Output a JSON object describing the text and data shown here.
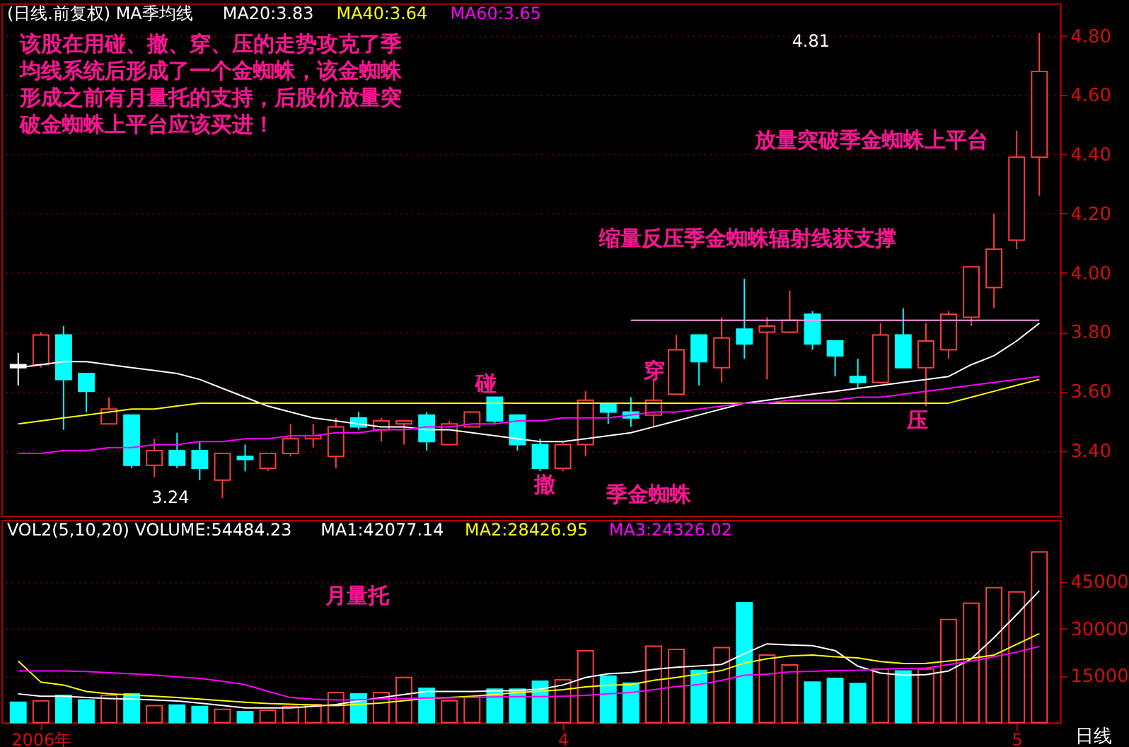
{
  "chart_data": [
    {
      "type": "candlestick",
      "title": "(日线.前复权) MA季均线",
      "categories": [
        null,
        null,
        null,
        null,
        null,
        null,
        null,
        null,
        null,
        null,
        null,
        null,
        null,
        null,
        null,
        null,
        null,
        null,
        null,
        null,
        null,
        null,
        null,
        null,
        null,
        null,
        null,
        null,
        null,
        null,
        null,
        null,
        null,
        null,
        null,
        null,
        null,
        null,
        null,
        null,
        null,
        null,
        null,
        null,
        null,
        null
      ],
      "ohlc": [
        [
          3.69,
          3.73,
          3.62,
          3.68
        ],
        [
          3.69,
          3.8,
          3.68,
          3.79
        ],
        [
          3.79,
          3.82,
          3.47,
          3.64
        ],
        [
          3.66,
          3.66,
          3.53,
          3.6
        ],
        [
          3.49,
          3.58,
          3.49,
          3.54
        ],
        [
          3.52,
          3.52,
          3.34,
          3.35
        ],
        [
          3.35,
          3.44,
          3.31,
          3.4
        ],
        [
          3.4,
          3.46,
          3.34,
          3.35
        ],
        [
          3.4,
          3.43,
          3.3,
          3.34
        ],
        [
          3.3,
          3.39,
          3.24,
          3.39
        ],
        [
          3.38,
          3.42,
          3.33,
          3.37
        ],
        [
          3.34,
          3.39,
          3.33,
          3.39
        ],
        [
          3.39,
          3.49,
          3.38,
          3.44
        ],
        [
          3.44,
          3.49,
          3.41,
          3.45
        ],
        [
          3.38,
          3.51,
          3.34,
          3.48
        ],
        [
          3.51,
          3.53,
          3.47,
          3.48
        ],
        [
          3.47,
          3.51,
          3.43,
          3.5
        ],
        [
          3.49,
          3.5,
          3.42,
          3.5
        ],
        [
          3.52,
          3.53,
          3.4,
          3.43
        ],
        [
          3.42,
          3.5,
          3.42,
          3.49
        ],
        [
          3.48,
          3.53,
          3.48,
          3.53
        ],
        [
          3.58,
          3.58,
          3.49,
          3.5
        ],
        [
          3.52,
          3.52,
          3.4,
          3.42
        ],
        [
          3.42,
          3.44,
          3.33,
          3.34
        ],
        [
          3.34,
          3.43,
          3.33,
          3.42
        ],
        [
          3.42,
          3.6,
          3.38,
          3.57
        ],
        [
          3.56,
          3.56,
          3.49,
          3.53
        ],
        [
          3.53,
          3.58,
          3.48,
          3.51
        ],
        [
          3.52,
          3.64,
          3.48,
          3.57
        ],
        [
          3.59,
          3.79,
          3.59,
          3.74
        ],
        [
          3.79,
          3.79,
          3.62,
          3.7
        ],
        [
          3.68,
          3.85,
          3.63,
          3.78
        ],
        [
          3.81,
          3.98,
          3.71,
          3.76
        ],
        [
          3.8,
          3.85,
          3.64,
          3.82
        ],
        [
          3.8,
          3.94,
          3.8,
          3.84
        ],
        [
          3.86,
          3.87,
          3.74,
          3.76
        ],
        [
          3.77,
          3.77,
          3.65,
          3.72
        ],
        [
          3.65,
          3.71,
          3.61,
          3.63
        ],
        [
          3.63,
          3.83,
          3.63,
          3.79
        ],
        [
          3.79,
          3.88,
          3.68,
          3.68
        ],
        [
          3.68,
          3.83,
          3.55,
          3.77
        ],
        [
          3.74,
          3.87,
          3.71,
          3.86
        ],
        [
          3.85,
          4.02,
          3.82,
          4.02
        ],
        [
          3.95,
          4.2,
          3.88,
          4.08
        ],
        [
          4.11,
          4.48,
          4.08,
          4.39
        ],
        [
          4.39,
          4.81,
          4.26,
          4.68
        ]
      ],
      "colors": [
        "#ffffff",
        "#ff3c3c",
        "#00ffff",
        "#00ffff",
        "#ff3c3c",
        "#00ffff",
        "#ff3c3c",
        "#00ffff",
        "#00ffff",
        "#ff3c3c",
        "#00ffff",
        "#ff3c3c",
        "#ff3c3c",
        "#ff3c3c",
        "#ff3c3c",
        "#00ffff",
        "#ff3c3c",
        "#ff3c3c",
        "#00ffff",
        "#ff3c3c",
        "#ff3c3c",
        "#00ffff",
        "#00ffff",
        "#00ffff",
        "#ff3c3c",
        "#ff3c3c",
        "#00ffff",
        "#00ffff",
        "#ff3c3c",
        "#ff3c3c",
        "#00ffff",
        "#ff3c3c",
        "#00ffff",
        "#ff3c3c",
        "#ff3c3c",
        "#00ffff",
        "#00ffff",
        "#00ffff",
        "#ff3c3c",
        "#00ffff",
        "#ff3c3c",
        "#ff3c3c",
        "#ff3c3c",
        "#ff3c3c",
        "#ff3c3c",
        "#ff3c3c"
      ],
      "series": [
        {
          "name": "MA20:3.83",
          "type": "line",
          "color": "#ffffff",
          "values": [
            3.68,
            3.69,
            3.7,
            3.7,
            3.69,
            3.68,
            3.67,
            3.66,
            3.64,
            3.61,
            3.58,
            3.55,
            3.53,
            3.51,
            3.5,
            3.49,
            3.48,
            3.48,
            3.47,
            3.47,
            3.46,
            3.45,
            3.44,
            3.43,
            3.43,
            3.44,
            3.45,
            3.46,
            3.48,
            3.5,
            3.52,
            3.54,
            3.56,
            3.57,
            3.58,
            3.59,
            3.6,
            3.61,
            3.62,
            3.63,
            3.64,
            3.65,
            3.69,
            3.72,
            3.77,
            3.83
          ]
        },
        {
          "name": "MA40:3.64",
          "type": "line",
          "color": "#ffff00",
          "values": [
            3.49,
            3.5,
            3.51,
            3.52,
            3.53,
            3.54,
            3.54,
            3.55,
            3.56,
            3.56,
            3.56,
            3.56,
            3.56,
            3.56,
            3.56,
            3.56,
            3.56,
            3.56,
            3.56,
            3.56,
            3.56,
            3.56,
            3.56,
            3.56,
            3.56,
            3.56,
            3.56,
            3.56,
            3.56,
            3.56,
            3.56,
            3.56,
            3.56,
            3.56,
            3.56,
            3.56,
            3.56,
            3.56,
            3.56,
            3.56,
            3.56,
            3.56,
            3.58,
            3.6,
            3.62,
            3.64
          ]
        },
        {
          "name": "MA60:3.65",
          "type": "line",
          "color": "#ff00ff",
          "values": [
            3.39,
            3.39,
            3.4,
            3.4,
            3.41,
            3.41,
            3.42,
            3.42,
            3.43,
            3.43,
            3.44,
            3.44,
            3.45,
            3.45,
            3.46,
            3.46,
            3.47,
            3.47,
            3.48,
            3.48,
            3.49,
            3.49,
            3.5,
            3.5,
            3.51,
            3.51,
            3.51,
            3.52,
            3.53,
            3.53,
            3.54,
            3.55,
            3.56,
            3.56,
            3.57,
            3.57,
            3.57,
            3.58,
            3.58,
            3.59,
            3.6,
            3.61,
            3.62,
            3.63,
            3.64,
            3.65
          ]
        },
        {
          "type": "line",
          "color": "#ff99ee",
          "values": [
            null,
            null,
            null,
            null,
            null,
            null,
            null,
            null,
            null,
            null,
            null,
            null,
            null,
            null,
            null,
            null,
            null,
            null,
            null,
            null,
            null,
            null,
            null,
            null,
            null,
            null,
            null,
            3.84,
            3.84,
            3.84,
            3.84,
            3.84,
            3.84,
            3.84,
            3.84,
            3.84,
            3.84,
            3.84,
            3.84,
            3.84,
            3.84,
            3.84,
            3.84,
            3.84,
            3.84,
            3.84
          ]
        }
      ],
      "ylim": [
        3.18,
        4.91
      ],
      "yticks": [
        {
          "value": 3.4,
          "label": "3.40"
        },
        {
          "value": 3.6,
          "label": "3.60"
        },
        {
          "value": 3.8,
          "label": "3.80"
        },
        {
          "value": 4.0,
          "label": "4.00"
        },
        {
          "value": 4.2,
          "label": "4.20"
        },
        {
          "value": 4.4,
          "label": "4.40"
        },
        {
          "value": 4.6,
          "label": "4.60"
        },
        {
          "value": 4.8,
          "label": "4.80"
        }
      ],
      "grid": "y",
      "legend": "top left",
      "tick_labels": "y",
      "annotations": [
        "该股在用碰、撤、穿、压的走势攻克了季均线系统后形成了一个金蜘蛛，该金蜘蛛形成之前有月量托的支持，后股价放量突破金蜘蛛上平台应该买进！",
        "碰",
        "撤",
        "穿",
        "压",
        "季金蜘蛛",
        "缩量反压季金蜘蛛辐射线获支撑",
        "放量突破季金蜘蛛上平台",
        "3.24",
        "4.81"
      ]
    },
    {
      "type": "bar",
      "title": "VOL2(5,10,20) VOLUME:54484.23",
      "categories": [
        null,
        "2006年",
        null,
        null,
        null,
        null,
        null,
        null,
        null,
        null,
        null,
        null,
        null,
        null,
        null,
        null,
        null,
        null,
        null,
        null,
        null,
        null,
        null,
        null,
        "4",
        null,
        null,
        null,
        null,
        null,
        null,
        null,
        null,
        null,
        null,
        null,
        null,
        null,
        null,
        null,
        null,
        null,
        null,
        null,
        "5",
        null
      ],
      "series": [
        {
          "type": "bar",
          "colors": [
            "#00ffff",
            "#ff3c3c",
            "#00ffff",
            "#00ffff",
            "#ff3c3c",
            "#00ffff",
            "#ff3c3c",
            "#00ffff",
            "#00ffff",
            "#ff3c3c",
            "#00ffff",
            "#ff3c3c",
            "#ff3c3c",
            "#ff3c3c",
            "#ff3c3c",
            "#00ffff",
            "#ff3c3c",
            "#ff3c3c",
            "#00ffff",
            "#ff3c3c",
            "#ff3c3c",
            "#00ffff",
            "#00ffff",
            "#00ffff",
            "#ff3c3c",
            "#ff3c3c",
            "#00ffff",
            "#00ffff",
            "#ff3c3c",
            "#ff3c3c",
            "#00ffff",
            "#ff3c3c",
            "#00ffff",
            "#ff3c3c",
            "#ff3c3c",
            "#00ffff",
            "#00ffff",
            "#00ffff",
            "#ff3c3c",
            "#00ffff",
            "#ff3c3c",
            "#ff3c3c",
            "#ff3c3c",
            "#ff3c3c",
            "#ff3c3c",
            "#ff3c3c"
          ],
          "values": [
            6500,
            6940,
            8730,
            7240,
            8730,
            9180,
            5450,
            5600,
            5150,
            4250,
            3500,
            3960,
            5150,
            5750,
            9630,
            9180,
            9630,
            14400,
            10970,
            6940,
            8130,
            10670,
            10670,
            13210,
            13660,
            22910,
            14850,
            12610,
            24400,
            23360,
            16640,
            23950,
            38280,
            21570,
            18430,
            12910,
            14100,
            12460,
            17090,
            16490,
            17090,
            32910,
            38130,
            43060,
            41710,
            54484
          ]
        },
        {
          "name": "MA1:42077.14",
          "type": "line",
          "color": "#ffffff",
          "values": [
            9180,
            8430,
            8430,
            8000,
            7700,
            7500,
            7240,
            6900,
            6200,
            5500,
            4700,
            4700,
            4700,
            5200,
            5750,
            6900,
            8000,
            9000,
            9930,
            9930,
            9930,
            10100,
            10220,
            10670,
            12000,
            14400,
            15600,
            16000,
            17000,
            17690,
            18100,
            18580,
            22000,
            25150,
            24800,
            24550,
            23000,
            18000,
            15800,
            15150,
            15300,
            16500,
            20370,
            27090,
            34500,
            42077
          ]
        },
        {
          "name": "MA2:28426.95",
          "type": "line",
          "color": "#ffff00",
          "values": [
            19630,
            12910,
            12000,
            9930,
            9200,
            8800,
            8430,
            8000,
            7500,
            7000,
            6500,
            6100,
            5900,
            5600,
            5450,
            5800,
            6300,
            7000,
            7690,
            8000,
            8430,
            9000,
            9600,
            10000,
            10500,
            11420,
            11900,
            12160,
            13500,
            14400,
            15500,
            16640,
            19000,
            20370,
            21300,
            21570,
            21000,
            20670,
            19500,
            18880,
            18900,
            19630,
            20500,
            21570,
            25000,
            28426
          ]
        },
        {
          "name": "MA3:24326.02",
          "type": "line",
          "color": "#ff00ff",
          "values": [
            16490,
            16490,
            16490,
            16300,
            15900,
            15600,
            15200,
            14600,
            14100,
            13200,
            12160,
            10000,
            8000,
            7500,
            7240,
            7300,
            7600,
            7700,
            7840,
            7900,
            8100,
            8200,
            8300,
            8300,
            8430,
            8700,
            9200,
            9630,
            10500,
            11500,
            12160,
            13500,
            15150,
            15500,
            16190,
            16400,
            16640,
            16700,
            17000,
            17300,
            17390,
            18500,
            19630,
            21000,
            22500,
            24326
          ]
        }
      ],
      "ylim": [
        0,
        64700
      ],
      "yticks": [
        15000,
        30000,
        45000
      ],
      "grid": "y",
      "legend": "top left",
      "annotations": [
        "月量托",
        "日线"
      ]
    }
  ]
}
